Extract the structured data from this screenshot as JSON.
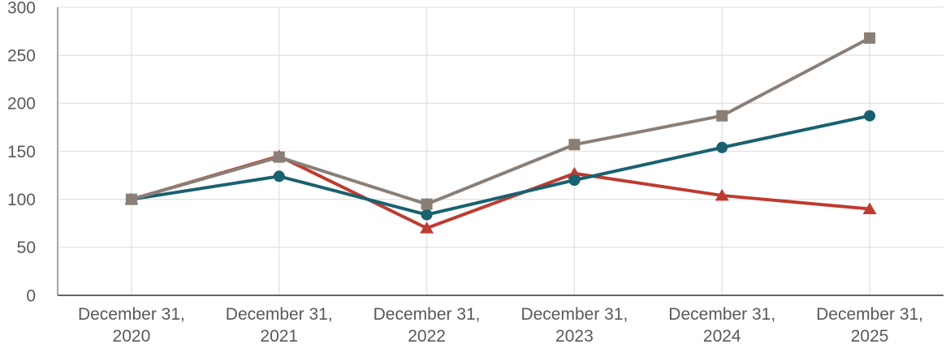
{
  "chart_data": {
    "type": "line",
    "title": "",
    "xlabel": "",
    "ylabel": "",
    "categories": [
      "December 31, 2020",
      "December 31, 2021",
      "December 31, 2022",
      "December 31, 2023",
      "December 31, 2024",
      "December 31, 2025"
    ],
    "y_ticks": [
      0,
      50,
      100,
      150,
      200,
      250,
      300
    ],
    "ylim": [
      0,
      300
    ],
    "grid": "on",
    "legend": "none",
    "series": [
      {
        "name": "red-triangle-series",
        "marker": "triangle",
        "color": "#BE3B30",
        "values": [
          100,
          145,
          70,
          127,
          104,
          90
        ]
      },
      {
        "name": "teal-circle-series",
        "marker": "circle",
        "color": "#1A6170",
        "values": [
          100,
          124,
          84,
          120,
          154,
          187
        ]
      },
      {
        "name": "gray-square-series",
        "marker": "square",
        "color": "#8A7F77",
        "values": [
          100,
          144,
          95,
          157,
          187,
          268
        ]
      }
    ],
    "colors": {
      "background": "#FFFFFF",
      "gridline": "#E3E3E3",
      "y_axis_line": "#A6A6A6",
      "x_axis_line": "#666666",
      "tick_text": "#595959"
    }
  }
}
